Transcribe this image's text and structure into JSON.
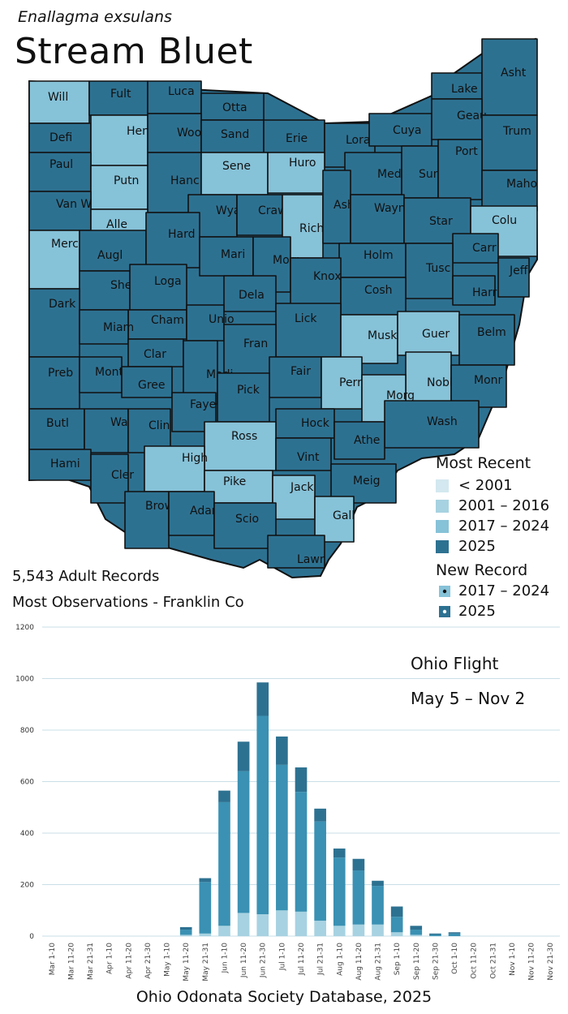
{
  "header": {
    "scientific_name": "Enallagma exsulans",
    "common_name": "Stream Bluet"
  },
  "colors": {
    "pre2001": "#d3e8f0",
    "y2001_2016": "#a7d2e1",
    "y2017_2024": "#86c2d8",
    "y2025": "#2d7191",
    "bar_dark": "#2d7191",
    "bar_mid": "#3a91b3",
    "bar_light": "#a7d2e1"
  },
  "legend": {
    "most_recent_title": "Most Recent",
    "most_recent_items": [
      "< 2001",
      "2001 – 2016",
      "2017 – 2024",
      "2025"
    ],
    "new_record_title": "New Record",
    "new_record_items": [
      "2017 – 2024",
      "2025"
    ]
  },
  "stats": {
    "adult_records": "5,543 Adult Records",
    "most_observations": "Most Observations - Franklin Co"
  },
  "counties": [
    {
      "name": "Will",
      "status": "2017-2024"
    },
    {
      "name": "Fult",
      "status": "2025"
    },
    {
      "name": "Luca",
      "status": "2025"
    },
    {
      "name": "Otta",
      "status": "2025"
    },
    {
      "name": "Defi",
      "status": "2025"
    },
    {
      "name": "Henr",
      "status": "2017-2024"
    },
    {
      "name": "Wood",
      "status": "2025"
    },
    {
      "name": "Sand",
      "status": "2025"
    },
    {
      "name": "Erie",
      "status": "2025"
    },
    {
      "name": "Lora",
      "status": "2025"
    },
    {
      "name": "Cuya",
      "status": "2025"
    },
    {
      "name": "Lake",
      "status": "2025"
    },
    {
      "name": "Asht",
      "status": "2025"
    },
    {
      "name": "Geau",
      "status": "2025"
    },
    {
      "name": "Trum",
      "status": "2025"
    },
    {
      "name": "Paul",
      "status": "2025"
    },
    {
      "name": "Putn",
      "status": "2017-2024"
    },
    {
      "name": "Hanc",
      "status": "2025"
    },
    {
      "name": "Sene",
      "status": "2017-2024"
    },
    {
      "name": "Huro",
      "status": "2017-2024"
    },
    {
      "name": "Medi",
      "status": "2025"
    },
    {
      "name": "Summ",
      "status": "2025"
    },
    {
      "name": "Port",
      "status": "2025"
    },
    {
      "name": "Maho",
      "status": "2025"
    },
    {
      "name": "Van W",
      "status": "2025"
    },
    {
      "name": "Alle",
      "status": "2017-2024"
    },
    {
      "name": "Wyan",
      "status": "2025"
    },
    {
      "name": "Craw",
      "status": "2025"
    },
    {
      "name": "Rich",
      "status": "2017-2024"
    },
    {
      "name": "Ashl",
      "status": "2025"
    },
    {
      "name": "Wayn",
      "status": "2025"
    },
    {
      "name": "Star",
      "status": "2025"
    },
    {
      "name": "Colu",
      "status": "2017-2024"
    },
    {
      "name": "Merc",
      "status": "2017-2024"
    },
    {
      "name": "Augl",
      "status": "2025"
    },
    {
      "name": "Hard",
      "status": "2025"
    },
    {
      "name": "Mari",
      "status": "2025"
    },
    {
      "name": "Morr",
      "status": "2025"
    },
    {
      "name": "Holm",
      "status": "2025"
    },
    {
      "name": "Carr",
      "status": "2025"
    },
    {
      "name": "Tusc",
      "status": "2025"
    },
    {
      "name": "Jeff",
      "status": "2025"
    },
    {
      "name": "Shel",
      "status": "2025"
    },
    {
      "name": "Loga",
      "status": "2025"
    },
    {
      "name": "Dela",
      "status": "2025"
    },
    {
      "name": "Knox",
      "status": "2025"
    },
    {
      "name": "Cosh",
      "status": "2025"
    },
    {
      "name": "Harr",
      "status": "2025"
    },
    {
      "name": "Dark",
      "status": "2025"
    },
    {
      "name": "Cham",
      "status": "2025"
    },
    {
      "name": "Unio",
      "status": "2025"
    },
    {
      "name": "Lick",
      "status": "2025"
    },
    {
      "name": "Miam",
      "status": "2025"
    },
    {
      "name": "Clar",
      "status": "2025"
    },
    {
      "name": "Fran",
      "status": "2025"
    },
    {
      "name": "Musk",
      "status": "2017-2024"
    },
    {
      "name": "Guer",
      "status": "2017-2024"
    },
    {
      "name": "Belm",
      "status": "2025"
    },
    {
      "name": "Madi",
      "status": "2025"
    },
    {
      "name": "Fair",
      "status": "2025"
    },
    {
      "name": "Perr",
      "status": "2017-2024"
    },
    {
      "name": "Nobl",
      "status": "2017-2024"
    },
    {
      "name": "Monr",
      "status": "2025"
    },
    {
      "name": "Preb",
      "status": "2025"
    },
    {
      "name": "Mont",
      "status": "2025"
    },
    {
      "name": "Gree",
      "status": "2025"
    },
    {
      "name": "Pick",
      "status": "2025"
    },
    {
      "name": "Morg",
      "status": "2017-2024"
    },
    {
      "name": "Faye",
      "status": "2025"
    },
    {
      "name": "Hock",
      "status": "2025"
    },
    {
      "name": "Wash",
      "status": "2025"
    },
    {
      "name": "Butl",
      "status": "2025"
    },
    {
      "name": "Warr",
      "status": "2025"
    },
    {
      "name": "Clin",
      "status": "2025"
    },
    {
      "name": "Ross",
      "status": "2017-2024"
    },
    {
      "name": "Athe",
      "status": "2025"
    },
    {
      "name": "High",
      "status": "2017-2024"
    },
    {
      "name": "Vint",
      "status": "2025"
    },
    {
      "name": "Hami",
      "status": "2025"
    },
    {
      "name": "Cler",
      "status": "2025"
    },
    {
      "name": "Pike",
      "status": "2017-2024"
    },
    {
      "name": "Jack",
      "status": "2017-2024"
    },
    {
      "name": "Meig",
      "status": "2025"
    },
    {
      "name": "Brow",
      "status": "2025"
    },
    {
      "name": "Adam",
      "status": "2025"
    },
    {
      "name": "Scio",
      "status": "2025"
    },
    {
      "name": "Gall",
      "status": "2017-2024"
    },
    {
      "name": "Lawr",
      "status": "2025"
    }
  ],
  "flight": {
    "title": "Ohio Flight",
    "range": "May 5 – Nov 2"
  },
  "footer": "Ohio Odonata Society Database, 2025",
  "chart_data": {
    "type": "bar",
    "stacked": true,
    "title": "Ohio Flight",
    "xlabel": "",
    "ylabel": "",
    "ylim": [
      0,
      1200
    ],
    "yticks": [
      0,
      200,
      400,
      600,
      800,
      1000,
      1200
    ],
    "categories": [
      "Mar 1-10",
      "Mar 11-20",
      "Mar 21-31",
      "Apr 1-10",
      "Apr 11-20",
      "Apr 21-30",
      "May 1-10",
      "May 11-20",
      "May 21-31",
      "Jun 1-10",
      "Jun 11-20",
      "Jun 21-30",
      "Jul 1-10",
      "Jul 11-20",
      "Jul 21-31",
      "Aug 1-10",
      "Aug 11-20",
      "Aug 21-31",
      "Sep 1-10",
      "Sep 11-20",
      "Sep 21-30",
      "Oct 1-10",
      "Oct 11-20",
      "Oct 21-31",
      "Nov 1-10",
      "Nov 11-20",
      "Nov 21-30"
    ],
    "series": [
      {
        "name": "< 2001",
        "color": "pre2001",
        "values": [
          0,
          0,
          0,
          0,
          0,
          0,
          0,
          0,
          0,
          0,
          0,
          0,
          0,
          0,
          0,
          0,
          0,
          0,
          0,
          0,
          0,
          0,
          0,
          0,
          0,
          0,
          0
        ]
      },
      {
        "name": "2001 – 2016",
        "color": "bar_light",
        "values": [
          0,
          0,
          0,
          0,
          0,
          0,
          0,
          5,
          10,
          40,
          90,
          85,
          100,
          95,
          60,
          40,
          45,
          45,
          15,
          5,
          0,
          0,
          0,
          0,
          0,
          0,
          0
        ]
      },
      {
        "name": "2017 – 2024",
        "color": "bar_mid",
        "values": [
          0,
          0,
          0,
          0,
          0,
          0,
          0,
          20,
          200,
          480,
          550,
          770,
          565,
          465,
          385,
          265,
          210,
          150,
          60,
          20,
          5,
          10,
          0,
          0,
          0,
          0,
          0
        ]
      },
      {
        "name": "2025",
        "color": "bar_dark",
        "values": [
          0,
          0,
          0,
          0,
          0,
          0,
          0,
          10,
          15,
          45,
          115,
          130,
          110,
          95,
          50,
          35,
          45,
          20,
          40,
          15,
          5,
          5,
          0,
          0,
          0,
          0,
          0
        ]
      }
    ]
  }
}
